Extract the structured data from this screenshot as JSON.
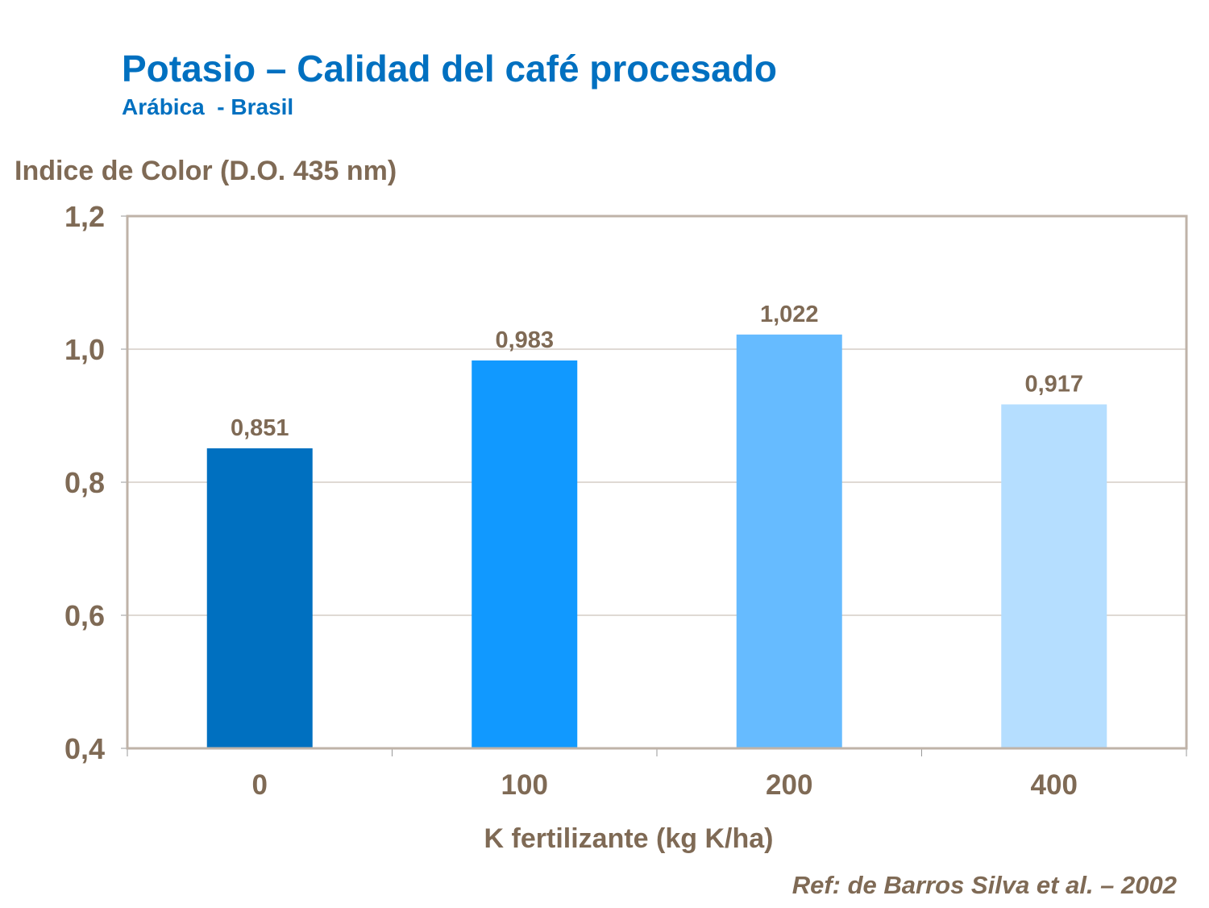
{
  "chart_data": {
    "type": "bar",
    "title": "Potasio – Calidad del café procesado",
    "subtitle": "Arábica  - Brasil",
    "xlabel": "K fertilizante (kg K/ha)",
    "ylabel": "Indice de Color (D.O. 435 nm)",
    "categories": [
      "0",
      "100",
      "200",
      "400"
    ],
    "values": [
      0.851,
      0.983,
      1.022,
      0.917
    ],
    "data_labels": [
      "0,851",
      "0,983",
      "1,022",
      "0,917"
    ],
    "bar_colors": [
      "#0070C0",
      "#1199FF",
      "#66BBFF",
      "#B5DEFF"
    ],
    "ylim": [
      0.4,
      1.2
    ],
    "yticks": [
      0.4,
      0.6,
      0.8,
      1.0,
      1.2
    ],
    "ytick_labels": [
      "0,4",
      "0,6",
      "0,8",
      "1,0",
      "1,2"
    ],
    "grid": true,
    "legend": "none"
  },
  "reference": "Ref: de Barros Silva et al. – 2002",
  "colors": {
    "title": "#0070C0",
    "text": "#7F6A55",
    "frame": "#BFB3A8",
    "grid": "#BFB3A8"
  }
}
